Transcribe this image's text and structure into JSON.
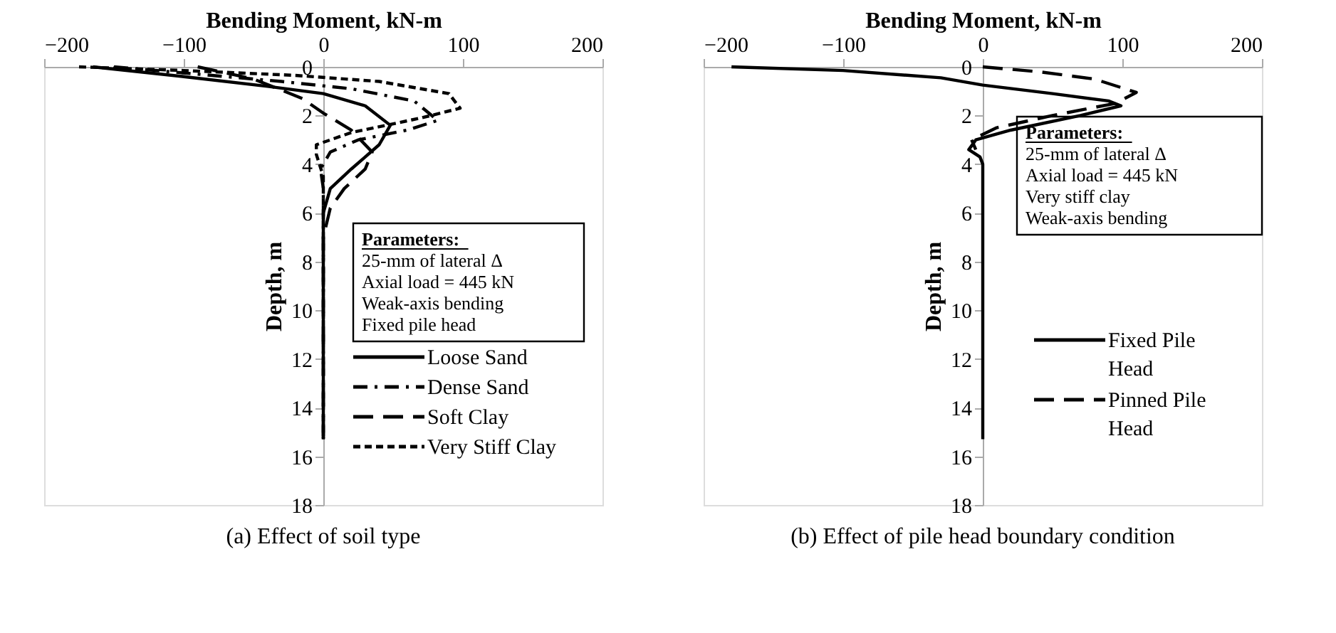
{
  "chart_data": [
    {
      "type": "line",
      "title": "(a) Effect of soil type",
      "xlabel": "Bending Moment, kN-m",
      "ylabel": "Depth, m",
      "xlim": [
        -200,
        200
      ],
      "xticks": [
        -200,
        -100,
        0,
        100,
        200
      ],
      "ylim": [
        18,
        0
      ],
      "yticks": [
        0,
        2,
        4,
        6,
        8,
        10,
        12,
        14,
        16,
        18
      ],
      "grid": false,
      "legend": "bottom right",
      "annotations": [
        "Parameters:",
        "25-mm of lateral Δ",
        "Axial load = 445 kN",
        "Weak-axis bending",
        "Fixed pile head"
      ],
      "series": [
        {
          "name": "Loose Sand",
          "color": "#000000",
          "line_style": "solid",
          "x": [
            -165,
            -100,
            -40,
            0,
            30,
            48,
            40,
            20,
            5,
            0,
            0
          ],
          "values": [
            0,
            0.4,
            0.8,
            1.1,
            1.6,
            2.4,
            3.2,
            4.2,
            5.0,
            6,
            15.3
          ]
        },
        {
          "name": "Dense Sand",
          "color": "#000000",
          "line_style": "dashdot",
          "x": [
            -150,
            -90,
            -30,
            20,
            65,
            82,
            60,
            25,
            5,
            -2,
            0,
            0
          ],
          "values": [
            0,
            0.3,
            0.6,
            0.9,
            1.4,
            2.2,
            2.6,
            3.0,
            3.5,
            4.2,
            5,
            15.3
          ]
        },
        {
          "name": "Soft Clay",
          "color": "#000000",
          "line_style": "dashed",
          "x": [
            -90,
            -50,
            -15,
            0,
            20,
            35,
            30,
            15,
            5,
            0,
            0
          ],
          "values": [
            0,
            0.5,
            1.3,
            1.9,
            2.6,
            3.5,
            4.2,
            5.0,
            5.8,
            7,
            15.3
          ]
        },
        {
          "name": "Very Stiff Clay",
          "color": "#000000",
          "line_style": "dotted",
          "x": [
            -175,
            -100,
            -20,
            40,
            90,
            98,
            70,
            20,
            -5,
            -5,
            0,
            0
          ],
          "values": [
            0,
            0.15,
            0.35,
            0.6,
            1.1,
            1.7,
            2.1,
            2.7,
            3.2,
            3.6,
            4.5,
            15.3
          ]
        }
      ]
    },
    {
      "type": "line",
      "title": "(b) Effect of pile head boundary condition",
      "xlabel": "Bending Moment, kN-m",
      "ylabel": "Depth, m",
      "xlim": [
        -200,
        200
      ],
      "xticks": [
        -200,
        -100,
        0,
        100,
        200
      ],
      "ylim": [
        18,
        0
      ],
      "yticks": [
        0,
        2,
        4,
        6,
        8,
        10,
        12,
        14,
        16,
        18
      ],
      "grid": false,
      "legend": "right",
      "annotations": [
        "Parameters:",
        "25-mm of lateral Δ",
        "Axial load = 445 kN",
        "Very stiff clay",
        "Weak-axis bending"
      ],
      "series": [
        {
          "name": "Fixed Pile Head",
          "color": "#000000",
          "line_style": "solid",
          "x": [
            -180,
            -100,
            -30,
            0,
            50,
            90,
            99,
            70,
            20,
            -5,
            -10,
            -2,
            0,
            0
          ],
          "values": [
            0,
            0.15,
            0.45,
            0.75,
            1.1,
            1.4,
            1.6,
            2.0,
            2.6,
            3.0,
            3.4,
            3.7,
            4,
            15.3
          ]
        },
        {
          "name": "Pinned Pile Head",
          "color": "#000000",
          "line_style": "dashed",
          "x": [
            0,
            40,
            80,
            110,
            95,
            50,
            10,
            -8,
            -5
          ],
          "values": [
            0,
            0.2,
            0.5,
            1.05,
            1.5,
            2.0,
            2.5,
            3.0,
            3.4
          ]
        }
      ]
    }
  ]
}
